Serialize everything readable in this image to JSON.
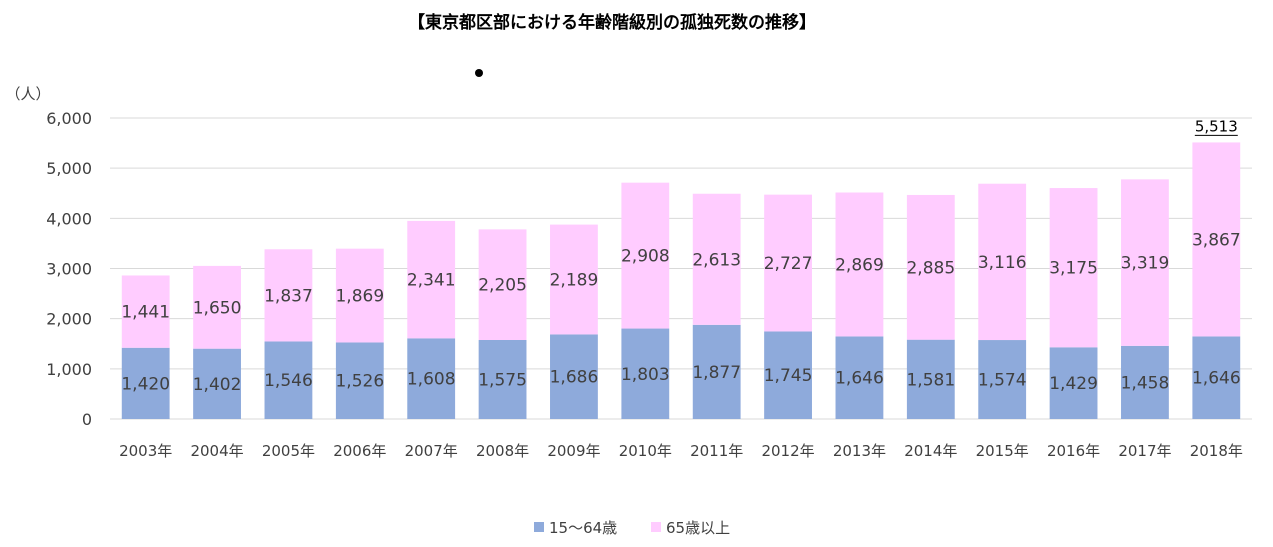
{
  "colors": {
    "series_young": "#8eaadb",
    "series_old": "#ffccff",
    "grid": "#d9d9d9",
    "text": "#404040"
  },
  "chart_data": {
    "type": "bar",
    "stacked": true,
    "title": "【東京都区部における年齢階級別の孤独死数の推移】",
    "ylabel": "（人）",
    "xlabel": "",
    "ylim": [
      0,
      6000
    ],
    "yticks": [
      0,
      1000,
      2000,
      3000,
      4000,
      5000,
      6000
    ],
    "ytick_labels": [
      "0",
      "1,000",
      "2,000",
      "3,000",
      "4,000",
      "5,000",
      "6,000"
    ],
    "grid": true,
    "legend_position": "bottom",
    "categories": [
      "2003年",
      "2004年",
      "2005年",
      "2006年",
      "2007年",
      "2008年",
      "2009年",
      "2010年",
      "2011年",
      "2012年",
      "2013年",
      "2014年",
      "2015年",
      "2016年",
      "2017年",
      "2018年"
    ],
    "series": [
      {
        "name": "15～64歳",
        "values": [
          1420,
          1402,
          1546,
          1526,
          1608,
          1575,
          1686,
          1803,
          1877,
          1745,
          1646,
          1581,
          1574,
          1429,
          1458,
          1646
        ],
        "labels": [
          "1,420",
          "1,402",
          "1,546",
          "1,526",
          "1,608",
          "1,575",
          "1,686",
          "1,803",
          "1,877",
          "1,745",
          "1,646",
          "1,581",
          "1,574",
          "1,429",
          "1,458",
          "1,646"
        ]
      },
      {
        "name": "65歳以上",
        "values": [
          1441,
          1650,
          1837,
          1869,
          2341,
          2205,
          2189,
          2908,
          2613,
          2727,
          2869,
          2885,
          3116,
          3175,
          3319,
          3867
        ],
        "labels": [
          "1,441",
          "1,650",
          "1,837",
          "1,869",
          "2,341",
          "2,205",
          "2,189",
          "2,908",
          "2,613",
          "2,727",
          "2,869",
          "2,885",
          "3,116",
          "3,175",
          "3,319",
          "3,867"
        ]
      }
    ],
    "annotations": [
      {
        "category": "2018年",
        "text": "5,513"
      }
    ]
  }
}
